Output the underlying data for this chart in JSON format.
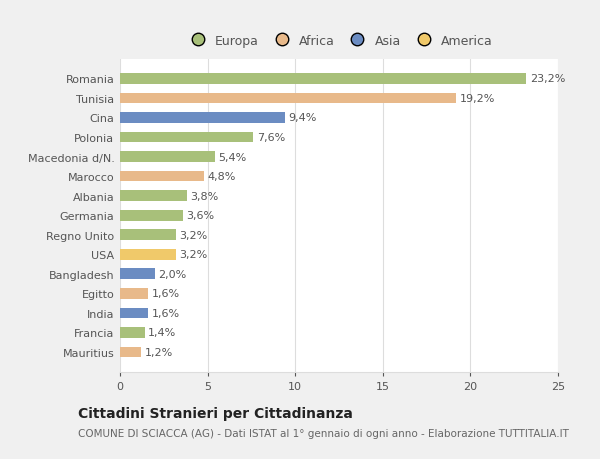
{
  "categories": [
    "Romania",
    "Tunisia",
    "Cina",
    "Polonia",
    "Macedonia d/N.",
    "Marocco",
    "Albania",
    "Germania",
    "Regno Unito",
    "USA",
    "Bangladesh",
    "Egitto",
    "India",
    "Francia",
    "Mauritius"
  ],
  "values": [
    23.2,
    19.2,
    9.4,
    7.6,
    5.4,
    4.8,
    3.8,
    3.6,
    3.2,
    3.2,
    2.0,
    1.6,
    1.6,
    1.4,
    1.2
  ],
  "continents": [
    "Europa",
    "Africa",
    "Asia",
    "Europa",
    "Europa",
    "Africa",
    "Europa",
    "Europa",
    "Europa",
    "America",
    "Asia",
    "Africa",
    "Asia",
    "Europa",
    "Africa"
  ],
  "colors": {
    "Europa": "#a8c07a",
    "Africa": "#e8b98a",
    "Asia": "#6b8cc2",
    "America": "#f0c96a"
  },
  "legend_order": [
    "Europa",
    "Africa",
    "Asia",
    "America"
  ],
  "title": "Cittadini Stranieri per Cittadinanza",
  "subtitle": "COMUNE DI SCIACCA (AG) - Dati ISTAT al 1° gennaio di ogni anno - Elaborazione TUTTITALIA.IT",
  "xlim": [
    0,
    25
  ],
  "xticks": [
    0,
    5,
    10,
    15,
    20,
    25
  ],
  "bg_color": "#f0f0f0",
  "plot_bg_color": "#ffffff",
  "grid_color": "#dddddd",
  "bar_height": 0.55,
  "title_fontsize": 10,
  "subtitle_fontsize": 7.5,
  "tick_fontsize": 8,
  "label_fontsize": 8,
  "legend_fontsize": 9
}
